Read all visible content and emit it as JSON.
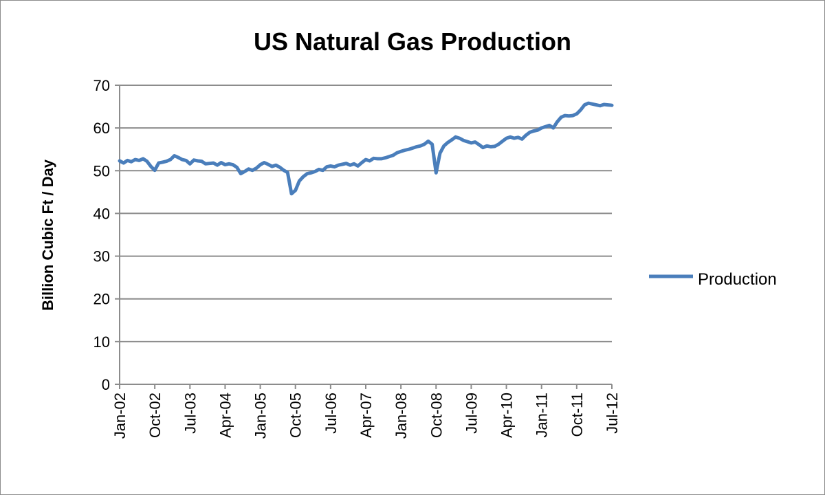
{
  "chart_data": {
    "type": "line",
    "title": "US Natural Gas Production",
    "xlabel": "",
    "ylabel": "Billion Cubic Ft / Day",
    "ylim": [
      0,
      70
    ],
    "yticks": [
      0,
      10,
      20,
      30,
      40,
      50,
      60,
      70
    ],
    "xtick_labels": [
      "Jan-02",
      "Oct-02",
      "Jul-03",
      "Apr-04",
      "Jan-05",
      "Oct-05",
      "Jul-06",
      "Apr-07",
      "Jan-08",
      "Oct-08",
      "Jul-09",
      "Apr-10",
      "Jan-11",
      "Oct-11",
      "Jul-12"
    ],
    "grid": "horizontal",
    "legend_position": "right",
    "series": [
      {
        "name": "Production",
        "color": "#4a7ebb",
        "points": [
          [
            "Jan-02",
            52.3
          ],
          [
            "Feb-02",
            51.8
          ],
          [
            "Mar-02",
            52.4
          ],
          [
            "Apr-02",
            52.1
          ],
          [
            "May-02",
            52.6
          ],
          [
            "Jun-02",
            52.4
          ],
          [
            "Jul-02",
            52.8
          ],
          [
            "Aug-02",
            52.2
          ],
          [
            "Sep-02",
            51.0
          ],
          [
            "Oct-02",
            50.1
          ],
          [
            "Nov-02",
            51.8
          ],
          [
            "Dec-02",
            52.0
          ],
          [
            "Jan-03",
            52.2
          ],
          [
            "Feb-03",
            52.6
          ],
          [
            "Mar-03",
            53.5
          ],
          [
            "Apr-03",
            53.1
          ],
          [
            "May-03",
            52.6
          ],
          [
            "Jun-03",
            52.4
          ],
          [
            "Jul-03",
            51.6
          ],
          [
            "Aug-03",
            52.5
          ],
          [
            "Sep-03",
            52.3
          ],
          [
            "Oct-03",
            52.2
          ],
          [
            "Nov-03",
            51.6
          ],
          [
            "Dec-03",
            51.7
          ],
          [
            "Jan-04",
            51.8
          ],
          [
            "Feb-04",
            51.3
          ],
          [
            "Mar-04",
            51.9
          ],
          [
            "Apr-04",
            51.4
          ],
          [
            "May-04",
            51.6
          ],
          [
            "Jun-04",
            51.4
          ],
          [
            "Jul-04",
            50.8
          ],
          [
            "Aug-04",
            49.3
          ],
          [
            "Sep-04",
            49.8
          ],
          [
            "Oct-04",
            50.4
          ],
          [
            "Nov-04",
            50.1
          ],
          [
            "Dec-04",
            50.6
          ],
          [
            "Jan-05",
            51.4
          ],
          [
            "Feb-05",
            51.9
          ],
          [
            "Mar-05",
            51.5
          ],
          [
            "Apr-05",
            51.0
          ],
          [
            "May-05",
            51.3
          ],
          [
            "Jun-05",
            50.8
          ],
          [
            "Jul-05",
            50.1
          ],
          [
            "Aug-05",
            49.6
          ],
          [
            "Sep-05",
            44.6
          ],
          [
            "Oct-05",
            45.4
          ],
          [
            "Nov-05",
            47.6
          ],
          [
            "Dec-05",
            48.6
          ],
          [
            "Jan-06",
            49.3
          ],
          [
            "Feb-06",
            49.5
          ],
          [
            "Mar-06",
            49.8
          ],
          [
            "Apr-06",
            50.3
          ],
          [
            "May-06",
            50.1
          ],
          [
            "Jun-06",
            50.9
          ],
          [
            "Jul-06",
            51.1
          ],
          [
            "Aug-06",
            50.9
          ],
          [
            "Sep-06",
            51.3
          ],
          [
            "Oct-06",
            51.5
          ],
          [
            "Nov-06",
            51.7
          ],
          [
            "Dec-06",
            51.3
          ],
          [
            "Jan-07",
            51.6
          ],
          [
            "Feb-07",
            51.1
          ],
          [
            "Mar-07",
            51.9
          ],
          [
            "Apr-07",
            52.6
          ],
          [
            "May-07",
            52.3
          ],
          [
            "Jun-07",
            52.9
          ],
          [
            "Jul-07",
            52.8
          ],
          [
            "Aug-07",
            52.8
          ],
          [
            "Sep-07",
            53.0
          ],
          [
            "Oct-07",
            53.3
          ],
          [
            "Nov-07",
            53.6
          ],
          [
            "Dec-07",
            54.2
          ],
          [
            "Jan-08",
            54.5
          ],
          [
            "Feb-08",
            54.8
          ],
          [
            "Mar-08",
            55.0
          ],
          [
            "Apr-08",
            55.3
          ],
          [
            "May-08",
            55.6
          ],
          [
            "Jun-08",
            55.8
          ],
          [
            "Jul-08",
            56.2
          ],
          [
            "Aug-08",
            56.9
          ],
          [
            "Sep-08",
            56.2
          ],
          [
            "Oct-08",
            49.5
          ],
          [
            "Nov-08",
            54.1
          ],
          [
            "Dec-08",
            55.8
          ],
          [
            "Jan-09",
            56.6
          ],
          [
            "Feb-09",
            57.2
          ],
          [
            "Mar-09",
            57.9
          ],
          [
            "Apr-09",
            57.6
          ],
          [
            "May-09",
            57.1
          ],
          [
            "Jun-09",
            56.8
          ],
          [
            "Jul-09",
            56.5
          ],
          [
            "Aug-09",
            56.7
          ],
          [
            "Sep-09",
            56.1
          ],
          [
            "Oct-09",
            55.4
          ],
          [
            "Nov-09",
            55.8
          ],
          [
            "Dec-09",
            55.6
          ],
          [
            "Jan-10",
            55.7
          ],
          [
            "Feb-10",
            56.2
          ],
          [
            "Mar-10",
            56.9
          ],
          [
            "Apr-10",
            57.6
          ],
          [
            "May-10",
            57.9
          ],
          [
            "Jun-10",
            57.6
          ],
          [
            "Jul-10",
            57.8
          ],
          [
            "Aug-10",
            57.4
          ],
          [
            "Sep-10",
            58.3
          ],
          [
            "Oct-10",
            59.0
          ],
          [
            "Nov-10",
            59.3
          ],
          [
            "Dec-10",
            59.5
          ],
          [
            "Jan-11",
            60.0
          ],
          [
            "Feb-11",
            60.3
          ],
          [
            "Mar-11",
            60.6
          ],
          [
            "Apr-11",
            60.0
          ],
          [
            "May-11",
            61.4
          ],
          [
            "Jun-11",
            62.5
          ],
          [
            "Jul-11",
            62.9
          ],
          [
            "Aug-11",
            62.8
          ],
          [
            "Sep-11",
            62.9
          ],
          [
            "Oct-11",
            63.3
          ],
          [
            "Nov-11",
            64.2
          ],
          [
            "Dec-11",
            65.4
          ],
          [
            "Jan-12",
            65.8
          ],
          [
            "Feb-12",
            65.6
          ],
          [
            "Mar-12",
            65.4
          ],
          [
            "Apr-12",
            65.2
          ],
          [
            "May-12",
            65.5
          ],
          [
            "Jun-12",
            65.4
          ],
          [
            "Jul-12",
            65.3
          ]
        ]
      }
    ]
  }
}
